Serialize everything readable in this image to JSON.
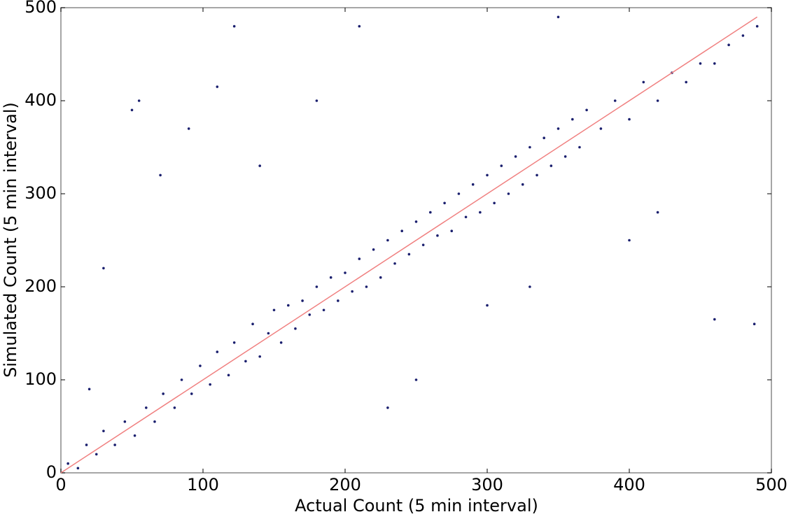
{
  "chart_data": {
    "type": "scatter",
    "x_label": "Actual Count (5 min interval)",
    "y_label": "Simulated Count (5 min interval)",
    "xlim": [
      0,
      500
    ],
    "ylim": [
      0,
      500
    ],
    "xticks": [
      0,
      100,
      200,
      300,
      400,
      500
    ],
    "yticks": [
      0,
      100,
      200,
      300,
      400,
      500
    ],
    "grid": false,
    "series": [
      {
        "color": "#1a1f6e",
        "x": [
          5,
          12,
          18,
          25,
          30,
          38,
          45,
          52,
          60,
          66,
          72,
          80,
          85,
          92,
          98,
          105,
          110,
          118,
          122,
          130,
          135,
          140,
          146,
          150,
          155,
          160,
          165,
          170,
          175,
          180,
          185,
          190,
          195,
          200,
          205,
          210,
          215,
          220,
          225,
          230,
          235,
          240,
          245,
          250,
          255,
          260,
          265,
          270,
          275,
          280,
          285,
          290,
          295,
          300,
          305,
          310,
          315,
          320,
          325,
          330,
          335,
          340,
          345,
          350,
          355,
          360,
          365,
          370,
          380,
          390,
          400,
          410,
          420,
          430,
          440,
          450,
          460,
          470,
          480,
          490,
          55,
          110,
          122,
          210,
          50,
          300,
          460,
          488,
          350,
          230,
          140,
          90,
          20,
          30,
          70,
          180,
          250,
          330,
          400,
          420
        ],
        "values": [
          10,
          5,
          30,
          20,
          45,
          30,
          55,
          40,
          70,
          55,
          85,
          70,
          100,
          85,
          115,
          95,
          130,
          105,
          140,
          120,
          160,
          125,
          150,
          175,
          140,
          180,
          155,
          185,
          170,
          200,
          175,
          210,
          185,
          215,
          195,
          230,
          200,
          240,
          210,
          250,
          225,
          260,
          235,
          270,
          245,
          280,
          255,
          290,
          260,
          300,
          275,
          310,
          280,
          320,
          290,
          330,
          300,
          340,
          310,
          350,
          320,
          360,
          330,
          370,
          340,
          380,
          350,
          390,
          370,
          400,
          380,
          420,
          400,
          430,
          420,
          440,
          440,
          460,
          470,
          480,
          400,
          415,
          480,
          480,
          390,
          180,
          165,
          160,
          490,
          70,
          330,
          370,
          90,
          220,
          320,
          400,
          100,
          200,
          250,
          280
        ]
      },
      {
        "type": "line",
        "color": "#f08080",
        "x": [
          0,
          490
        ],
        "values": [
          0,
          490
        ]
      }
    ]
  }
}
